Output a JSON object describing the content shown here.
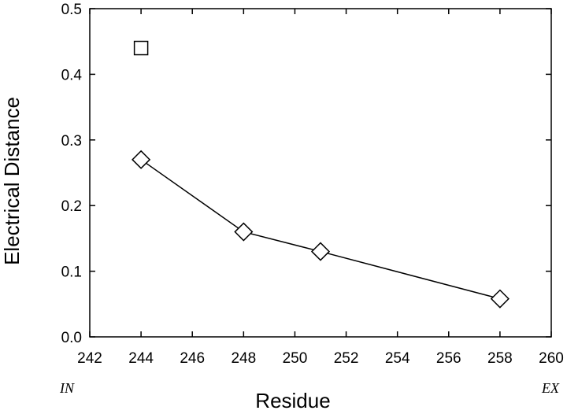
{
  "chart_data": {
    "type": "scatter",
    "xlabel": "Residue",
    "ylabel": "Electrical Distance",
    "xlim": [
      242,
      260
    ],
    "ylim": [
      0,
      0.5
    ],
    "xticks": [
      242,
      244,
      246,
      248,
      250,
      252,
      254,
      256,
      258,
      260
    ],
    "yticks": [
      "0.0",
      "0.1",
      "0.2",
      "0.3",
      "0.4",
      "0.5"
    ],
    "grid": false,
    "annotations": {
      "left": "IN",
      "right": "EX"
    },
    "series": [
      {
        "marker": "diamond",
        "connected": true,
        "points": [
          {
            "x": 244,
            "y": 0.27
          },
          {
            "x": 248,
            "y": 0.16
          },
          {
            "x": 251,
            "y": 0.13
          },
          {
            "x": 258,
            "y": 0.058
          }
        ]
      },
      {
        "marker": "square",
        "connected": false,
        "points": [
          {
            "x": 244,
            "y": 0.44
          }
        ]
      }
    ]
  }
}
